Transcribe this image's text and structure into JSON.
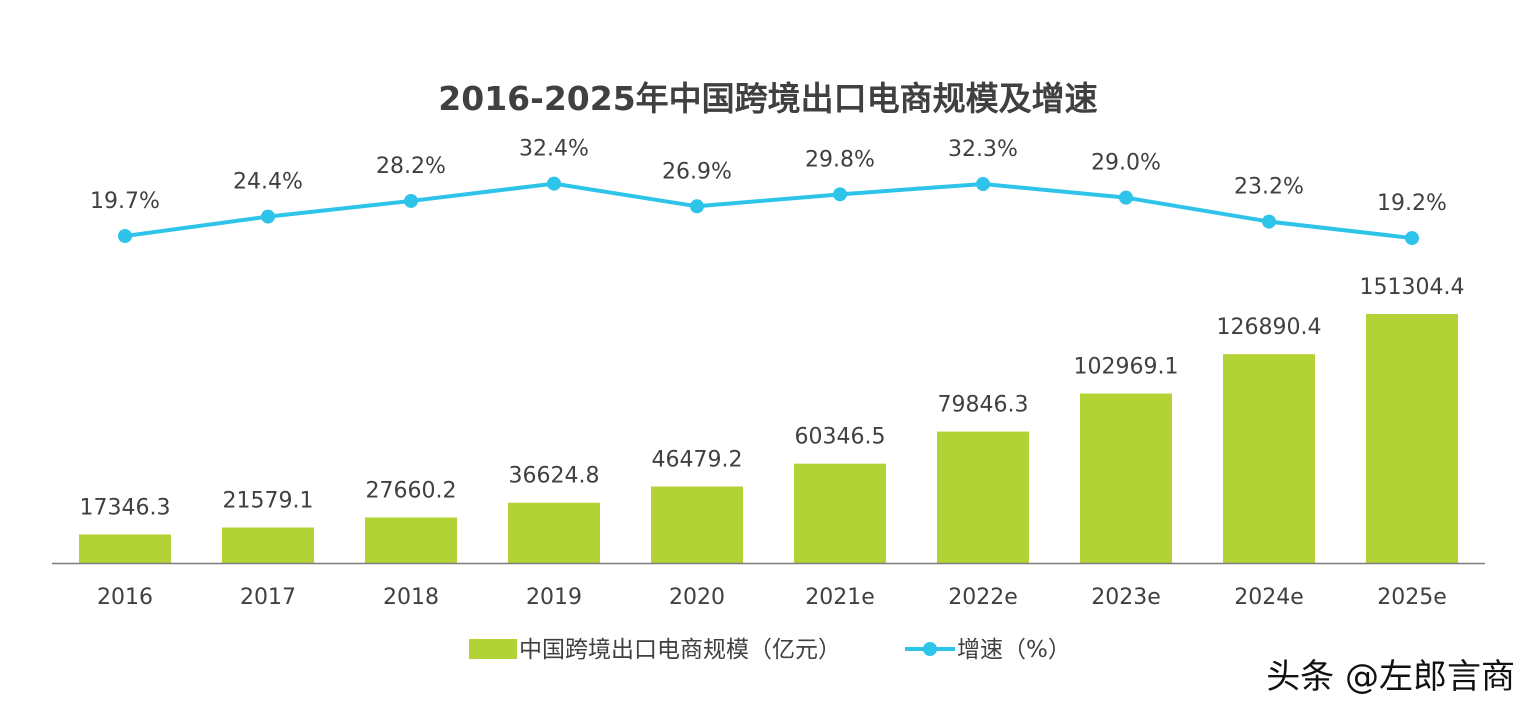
{
  "chart_data": {
    "type": "bar+line",
    "title": "2016-2025年中国跨境出口电商规模及增速",
    "categories": [
      "2016",
      "2017",
      "2018",
      "2019",
      "2020",
      "2021e",
      "2022e",
      "2023e",
      "2024e",
      "2025e"
    ],
    "series": [
      {
        "name": "中国跨境出口电商规模（亿元）",
        "type": "bar",
        "color": "#b2d235",
        "values": [
          17346.3,
          21579.1,
          27660.2,
          36624.8,
          46479.2,
          60346.5,
          79846.3,
          102969.1,
          126890.4,
          151304.4
        ],
        "labels": [
          "17346.3",
          "21579.1",
          "27660.2",
          "36624.8",
          "46479.2",
          "60346.5",
          "79846.3",
          "102969.1",
          "126890.4",
          "151304.4"
        ]
      },
      {
        "name": "增速（%）",
        "type": "line",
        "color": "#2ec4ea",
        "values": [
          19.7,
          24.4,
          28.2,
          32.4,
          26.9,
          29.8,
          32.3,
          29.0,
          23.2,
          19.2
        ],
        "labels": [
          "19.7%",
          "24.4%",
          "28.2%",
          "32.4%",
          "26.9%",
          "29.8%",
          "32.3%",
          "29.0%",
          "23.2%",
          "19.2%"
        ]
      }
    ],
    "legend_position": "bottom-center",
    "grid": false
  },
  "legend": {
    "bar_label": "中国跨境出口电商规模（亿元）",
    "line_label": "增速（%）"
  },
  "watermark": "头条 @左郎言商"
}
